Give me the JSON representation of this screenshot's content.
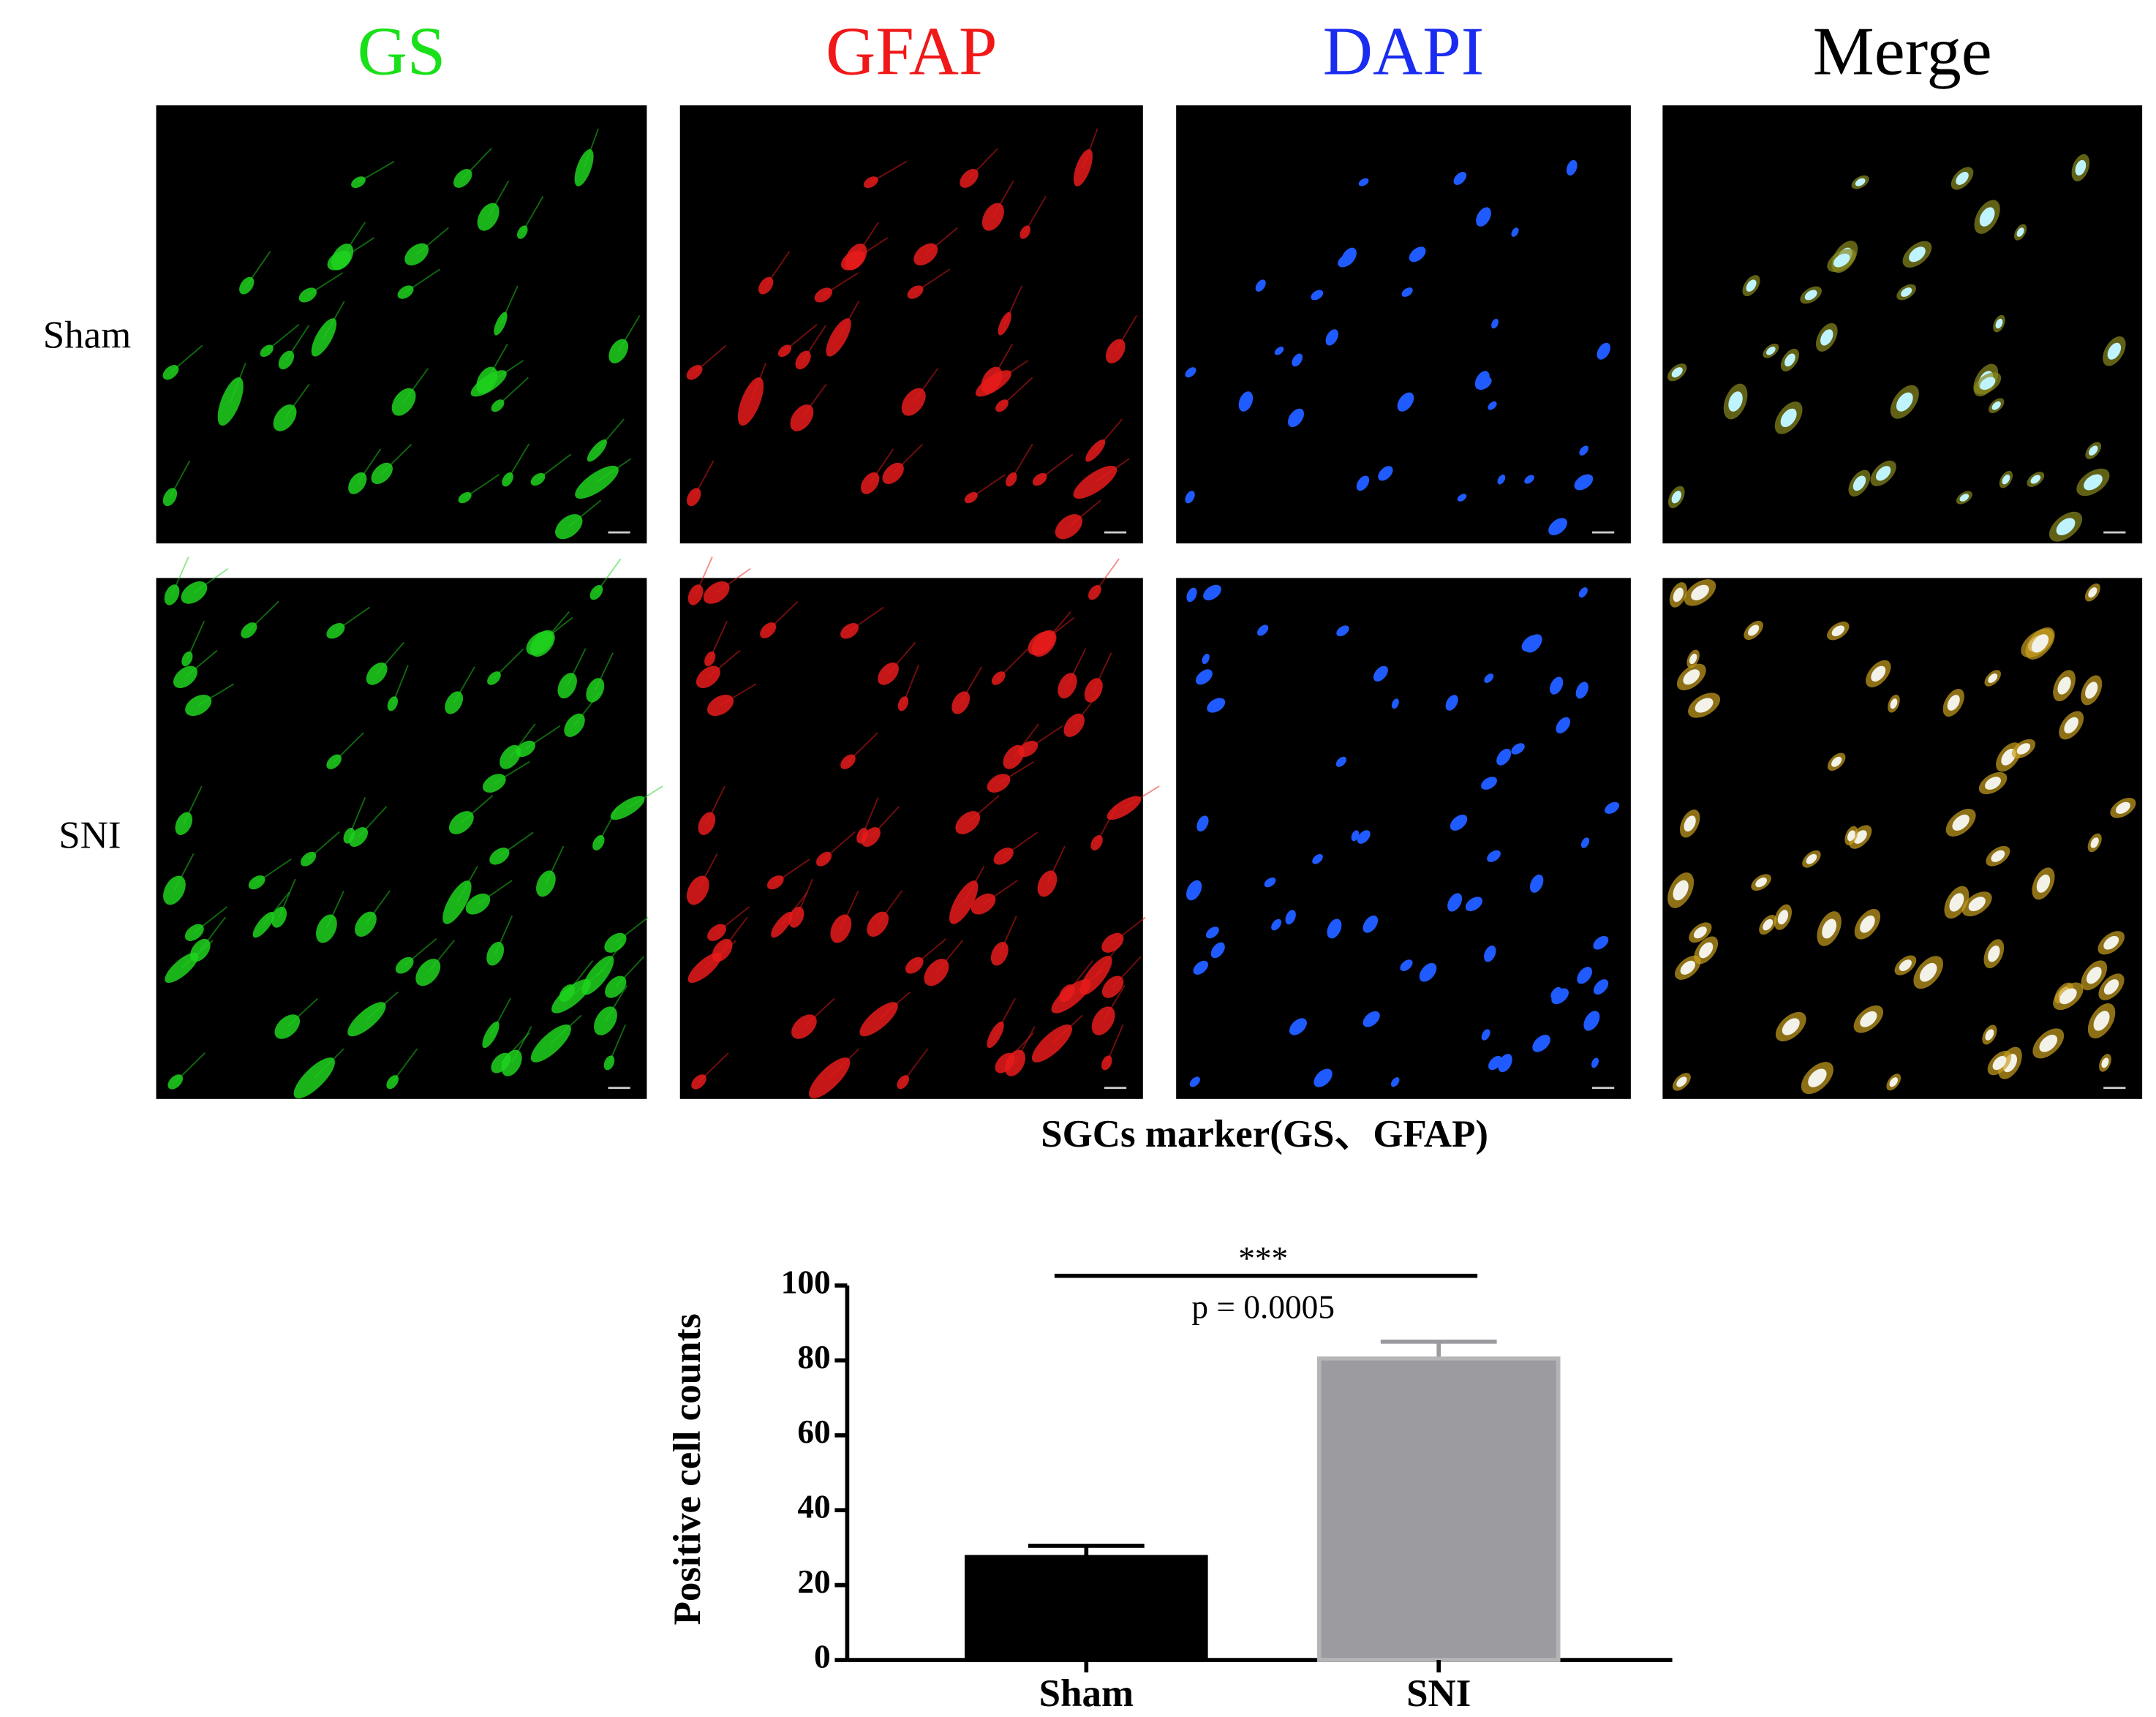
{
  "figure": {
    "columns": [
      {
        "label": "GS",
        "color": "#19e019"
      },
      {
        "label": "GFAP",
        "color": "#f01818"
      },
      {
        "label": "DAPI",
        "color": "#1a2cf0"
      },
      {
        "label": "Merge",
        "color": "#000000"
      }
    ],
    "rows": [
      "Sham",
      "SNI"
    ],
    "caption": "SGCs marker(GS、GFAP)"
  },
  "chart_data": {
    "type": "bar",
    "categories": [
      "Sham",
      "SNI"
    ],
    "values": [
      27.5,
      80.5
    ],
    "errors": [
      3,
      4.5
    ],
    "colors": [
      "#000000",
      "#9b9ba0"
    ],
    "y_label": "Positive cell counts",
    "ylim": [
      0,
      100
    ],
    "yticks": [
      0,
      20,
      40,
      60,
      80,
      100
    ],
    "annotations": [
      "***",
      "p = 0.0005"
    ]
  }
}
